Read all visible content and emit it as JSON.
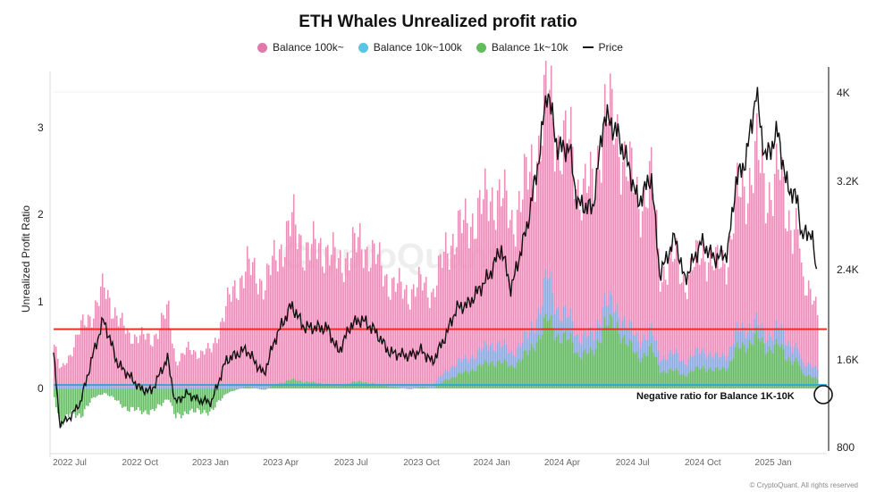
{
  "chart_data": {
    "type": "bar",
    "title": "ETH Whales Unrealized profit ratio",
    "ylabel": "Unrealized Profit Ratio",
    "ylim": [
      -0.6,
      3.6
    ],
    "y2lim": [
      800,
      4000
    ],
    "left_ticks": [
      "0",
      "1",
      "2",
      "3"
    ],
    "right_ticks": [
      "800",
      "1.6K",
      "2.4K",
      "3.2K",
      "4K"
    ],
    "x_ticks": [
      "2022 Jul",
      "2022 Oct",
      "2023 Jan",
      "2023 Apr",
      "2023 Jul",
      "2023 Oct",
      "2024 Jan",
      "2024 Apr",
      "2024 Jul",
      "2024 Oct",
      "2025 Jan"
    ],
    "legend_position": "top",
    "grid": false,
    "series": [
      {
        "name": "Balance 100k~",
        "color": "#e07aaa",
        "axis": "left"
      },
      {
        "name": "Balance 10k~100k",
        "color": "#5bc3e3",
        "axis": "left"
      },
      {
        "name": "Balance 1k~10k",
        "color": "#62bd5e",
        "axis": "left"
      },
      {
        "name": "Price",
        "color": "#111111",
        "axis": "right"
      }
    ],
    "columns": [
      "date",
      "balance_100k",
      "balance_10k_100k",
      "balance_1k_10k",
      "price"
    ],
    "rows": [
      [
        "2022-06-10",
        0.5,
        0.05,
        -0.1,
        1650
      ],
      [
        "2022-06-18",
        0.2,
        0.02,
        -0.4,
        1000
      ],
      [
        "2022-07-01",
        0.4,
        0.03,
        -0.3,
        1060
      ],
      [
        "2022-07-15",
        0.7,
        0.03,
        -0.3,
        1200
      ],
      [
        "2022-08-01",
        0.9,
        0.03,
        -0.1,
        1650
      ],
      [
        "2022-08-14",
        1.15,
        0.03,
        -0.05,
        1950
      ],
      [
        "2022-09-01",
        0.8,
        0.02,
        -0.15,
        1550
      ],
      [
        "2022-09-15",
        0.6,
        0.02,
        -0.25,
        1450
      ],
      [
        "2022-10-01",
        0.6,
        0.02,
        -0.25,
        1320
      ],
      [
        "2022-10-15",
        0.55,
        0.02,
        -0.28,
        1300
      ],
      [
        "2022-11-05",
        0.9,
        0.02,
        -0.1,
        1600
      ],
      [
        "2022-11-15",
        0.3,
        0.02,
        -0.35,
        1200
      ],
      [
        "2022-12-01",
        0.45,
        0.02,
        -0.25,
        1280
      ],
      [
        "2022-12-15",
        0.4,
        0.02,
        -0.28,
        1220
      ],
      [
        "2023-01-01",
        0.45,
        0.02,
        -0.25,
        1200
      ],
      [
        "2023-01-20",
        0.95,
        0.03,
        -0.05,
        1580
      ],
      [
        "2023-02-15",
        1.4,
        0.04,
        0.02,
        1680
      ],
      [
        "2023-03-10",
        1.2,
        0.04,
        -0.02,
        1450
      ],
      [
        "2023-03-25",
        1.5,
        0.05,
        0.05,
        1780
      ],
      [
        "2023-04-15",
        1.9,
        0.06,
        0.1,
        2080
      ],
      [
        "2023-05-01",
        1.6,
        0.05,
        0.08,
        1880
      ],
      [
        "2023-06-01",
        1.6,
        0.05,
        0.05,
        1870
      ],
      [
        "2023-06-15",
        1.4,
        0.04,
        0.02,
        1650
      ],
      [
        "2023-07-01",
        1.6,
        0.05,
        0.07,
        1900
      ],
      [
        "2023-07-15",
        1.65,
        0.05,
        0.08,
        1950
      ],
      [
        "2023-08-01",
        1.5,
        0.05,
        0.05,
        1850
      ],
      [
        "2023-08-20",
        1.2,
        0.03,
        0.02,
        1650
      ],
      [
        "2023-09-15",
        1.1,
        0.03,
        -0.01,
        1620
      ],
      [
        "2023-10-01",
        1.2,
        0.04,
        0.02,
        1670
      ],
      [
        "2023-10-15",
        1.1,
        0.05,
        0.0,
        1560
      ],
      [
        "2023-11-01",
        1.6,
        0.2,
        0.1,
        1800
      ],
      [
        "2023-11-15",
        1.8,
        0.3,
        0.15,
        2050
      ],
      [
        "2023-12-01",
        1.9,
        0.35,
        0.2,
        2090
      ],
      [
        "2023-12-28",
        2.2,
        0.5,
        0.3,
        2350
      ],
      [
        "2024-01-12",
        2.2,
        0.5,
        0.3,
        2600
      ],
      [
        "2024-01-25",
        1.9,
        0.4,
        0.25,
        2220
      ],
      [
        "2024-02-15",
        2.4,
        0.6,
        0.4,
        2800
      ],
      [
        "2024-03-01",
        2.8,
        0.9,
        0.6,
        3400
      ],
      [
        "2024-03-12",
        3.45,
        1.3,
        0.8,
        4050
      ],
      [
        "2024-03-25",
        2.8,
        0.9,
        0.6,
        3500
      ],
      [
        "2024-04-10",
        2.8,
        0.8,
        0.55,
        3500
      ],
      [
        "2024-04-20",
        2.3,
        0.6,
        0.4,
        3000
      ],
      [
        "2024-05-10",
        2.3,
        0.6,
        0.4,
        2950
      ],
      [
        "2024-05-25",
        3.2,
        1.0,
        0.75,
        3800
      ],
      [
        "2024-06-10",
        2.9,
        0.9,
        0.7,
        3650
      ],
      [
        "2024-06-25",
        2.5,
        0.7,
        0.5,
        3350
      ],
      [
        "2024-07-08",
        2.1,
        0.55,
        0.35,
        3000
      ],
      [
        "2024-07-25",
        2.4,
        0.65,
        0.45,
        3250
      ],
      [
        "2024-08-05",
        1.3,
        0.35,
        0.2,
        2350
      ],
      [
        "2024-08-25",
        1.5,
        0.4,
        0.2,
        2700
      ],
      [
        "2024-09-06",
        1.2,
        0.3,
        0.15,
        2300
      ],
      [
        "2024-09-28",
        1.6,
        0.45,
        0.25,
        2650
      ],
      [
        "2024-10-15",
        1.4,
        0.35,
        0.2,
        2500
      ],
      [
        "2024-11-01",
        1.5,
        0.4,
        0.25,
        2550
      ],
      [
        "2024-11-12",
        2.2,
        0.65,
        0.45,
        3200
      ],
      [
        "2024-11-25",
        2.3,
        0.7,
        0.5,
        3400
      ],
      [
        "2024-12-08",
        2.7,
        0.75,
        0.6,
        4000
      ],
      [
        "2024-12-20",
        2.2,
        0.6,
        0.45,
        3400
      ],
      [
        "2025-01-06",
        2.5,
        0.7,
        0.5,
        3650
      ],
      [
        "2025-01-15",
        2.0,
        0.55,
        0.35,
        3200
      ],
      [
        "2025-02-01",
        1.8,
        0.45,
        0.3,
        3000
      ],
      [
        "2025-02-05",
        1.1,
        0.25,
        0.15,
        2700
      ],
      [
        "2025-02-18",
        1.2,
        0.3,
        0.15,
        2750
      ],
      [
        "2025-02-26",
        0.8,
        0.2,
        0.1,
        2250
      ]
    ],
    "reference_lines": [
      {
        "value": 0.68,
        "color": "#e8302a"
      },
      {
        "value": 0.04,
        "color": "#2fa8d8"
      }
    ],
    "annotation": "Negative ratio for Balance 1K-10K",
    "watermark": "CryptoQuant"
  },
  "footer": {
    "copyright": "© CryptoQuant. All rights reserved"
  }
}
